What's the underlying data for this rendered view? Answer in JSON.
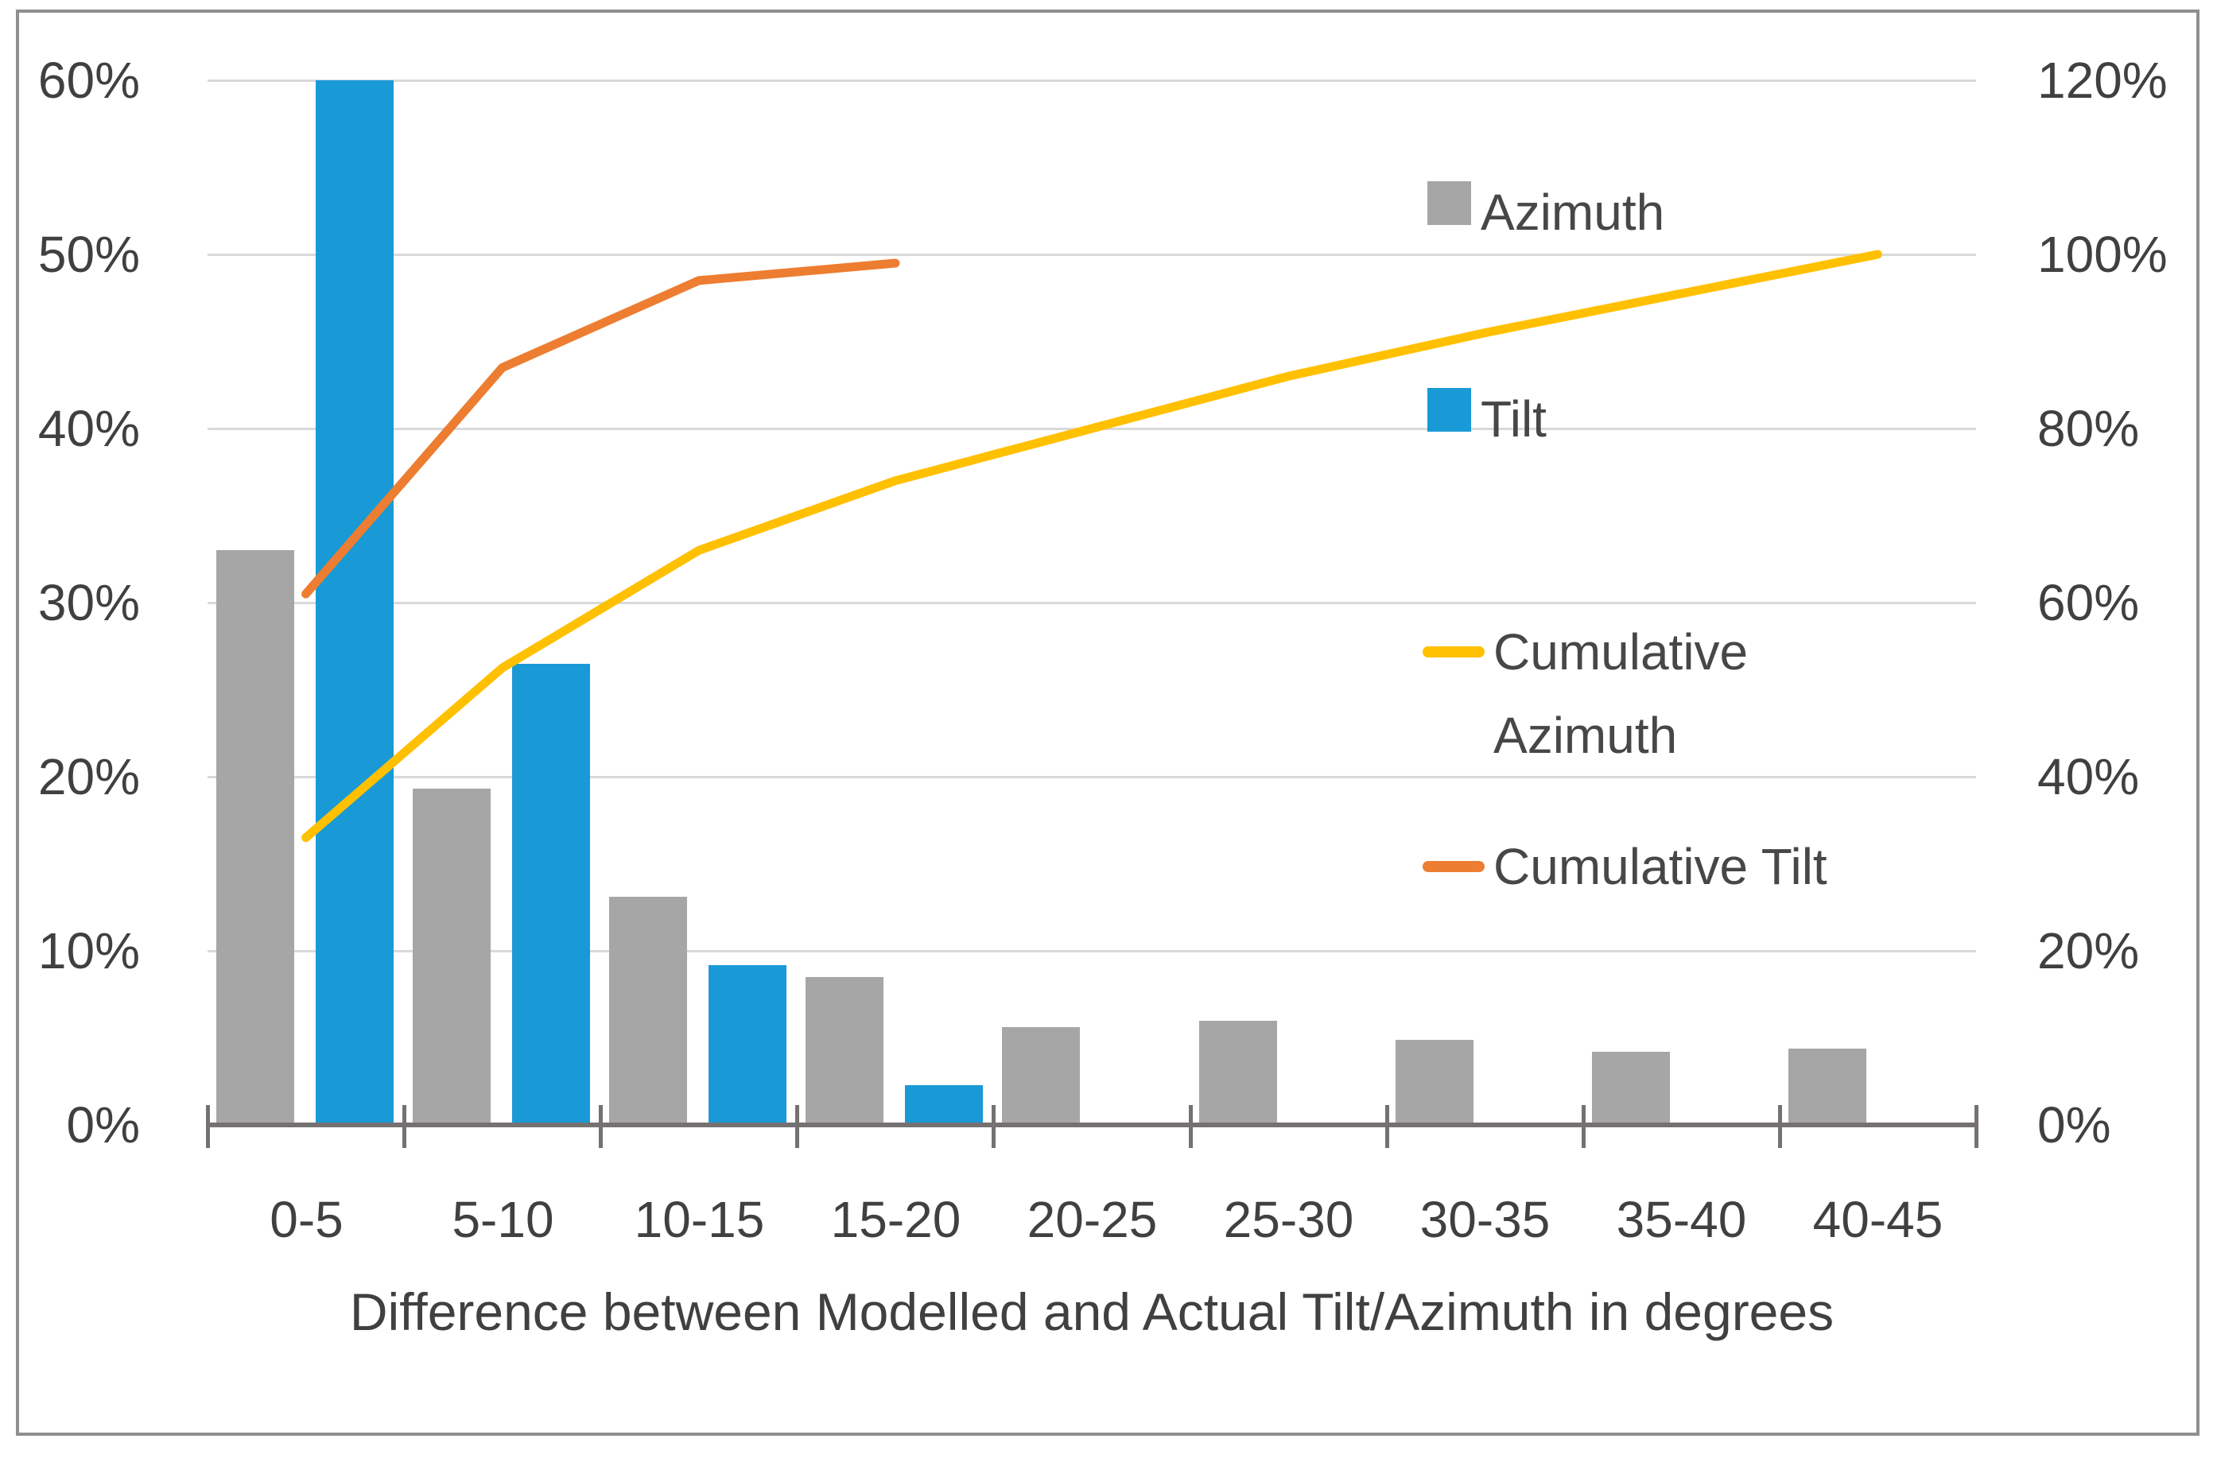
{
  "chart_data": {
    "type": "bar",
    "subtype": "pareto-combo (clustered bars + cumulative lines)",
    "title": "",
    "xlabel": "Difference between Modelled and Actual Tilt/Azimuth in degrees",
    "ylabel": "",
    "categories": [
      "0-5",
      "5-10",
      "10-15",
      "15-20",
      "20-25",
      "25-30",
      "30-35",
      "35-40",
      "40-45"
    ],
    "series": [
      {
        "name": "Azimuth",
        "type": "bar",
        "axis": "left",
        "color": "#a6a6a6",
        "values": [
          33,
          19.3,
          13.1,
          8.5,
          5.6,
          6.0,
          4.9,
          4.2,
          4.4
        ]
      },
      {
        "name": "Tilt",
        "type": "bar",
        "axis": "left",
        "color": "#199ad6",
        "values": [
          60,
          26.5,
          9.2,
          2.3,
          null,
          null,
          null,
          null,
          null
        ]
      },
      {
        "name": "Cumulative Azimuth",
        "type": "line",
        "axis": "right",
        "color": "#ffc000",
        "values": [
          33,
          52.5,
          66,
          74,
          80,
          86,
          91,
          95.5,
          100
        ]
      },
      {
        "name": "Cumulative Tilt",
        "type": "line",
        "axis": "right",
        "color": "#ed7d31",
        "values": [
          61,
          87,
          97,
          99,
          null,
          null,
          null,
          null,
          null
        ]
      }
    ],
    "left_axis": {
      "min": 0,
      "max": 60,
      "tick_step": 10,
      "tick_labels": [
        "0%",
        "10%",
        "20%",
        "30%",
        "40%",
        "50%",
        "60%"
      ]
    },
    "right_axis": {
      "min": 0,
      "max": 120,
      "tick_step": 20,
      "tick_labels": [
        "0%",
        "20%",
        "40%",
        "60%",
        "80%",
        "100%",
        "120%"
      ]
    },
    "grid": true,
    "legend_position": "inside-right"
  },
  "legend": {
    "items": [
      {
        "label": "Azimuth",
        "marker": "square",
        "color": "#a6a6a6"
      },
      {
        "label": "Tilt",
        "marker": "square",
        "color": "#199ad6"
      },
      {
        "label": "Cumulative\nAzimuth",
        "marker": "dash",
        "color": "#ffc000"
      },
      {
        "label": "Cumulative Tilt",
        "marker": "dash",
        "color": "#ed7d31"
      }
    ]
  },
  "colors": {
    "background": "#ffffff",
    "gridline": "#d9d9d9",
    "axis_line": "#767171",
    "text": "#404040",
    "border": "#8f8f8f"
  }
}
